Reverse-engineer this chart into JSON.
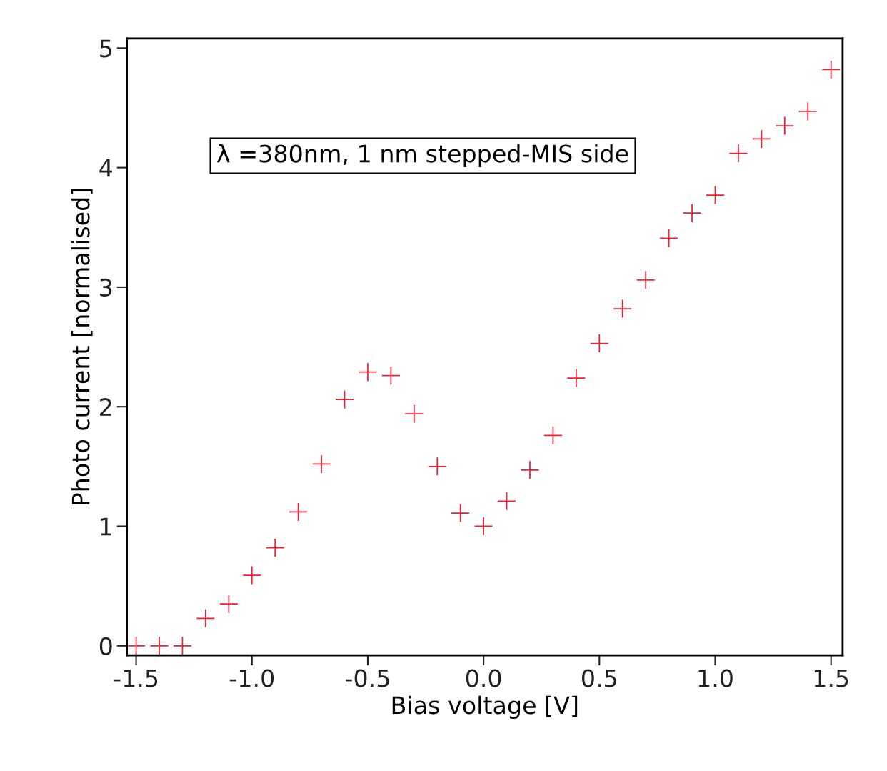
{
  "chart_data": {
    "type": "scatter",
    "xlabel": "Bias voltage [V]",
    "ylabel": "Photo current [normalised]",
    "annotations": [
      "λ =380nm, 1 nm stepped-MIS side"
    ],
    "x": [
      -1.5,
      -1.4,
      -1.3,
      -1.2,
      -1.1,
      -1.0,
      -0.9,
      -0.8,
      -0.7,
      -0.6,
      -0.5,
      -0.4,
      -0.3,
      -0.2,
      -0.1,
      0.0,
      0.1,
      0.2,
      0.3,
      0.4,
      0.5,
      0.6,
      0.7,
      0.8,
      0.9,
      1.0,
      1.1,
      1.2,
      1.3,
      1.4,
      1.5
    ],
    "series": [
      {
        "color": "#ee2233",
        "values": [
          0,
          0,
          0,
          0.23,
          0.35,
          0.59,
          0.82,
          1.12,
          1.52,
          2.06,
          2.29,
          2.26,
          1.94,
          1.5,
          1.11,
          1.0,
          1.21,
          1.47,
          1.76,
          2.24,
          2.53,
          2.82,
          3.06,
          3.41,
          3.62,
          3.77,
          4.12,
          4.24,
          4.35,
          4.47,
          4.82
        ]
      }
    ],
    "marker": "cross",
    "grid": false,
    "xlim": [
      -1.54,
      1.55
    ],
    "ylim": [
      -0.08,
      5.08
    ],
    "xticks": [
      {
        "value": -1.5,
        "label": "-1.5"
      },
      {
        "value": -1.0,
        "label": "-1.0"
      },
      {
        "value": -0.5,
        "label": "-0.5"
      },
      {
        "value": 0.0,
        "label": "0.0"
      },
      {
        "value": 0.5,
        "label": "0.5"
      },
      {
        "value": 1.0,
        "label": "1.0"
      },
      {
        "value": 1.5,
        "label": "1.5"
      }
    ],
    "yticks": [
      0,
      1,
      2,
      3,
      4,
      5
    ]
  }
}
